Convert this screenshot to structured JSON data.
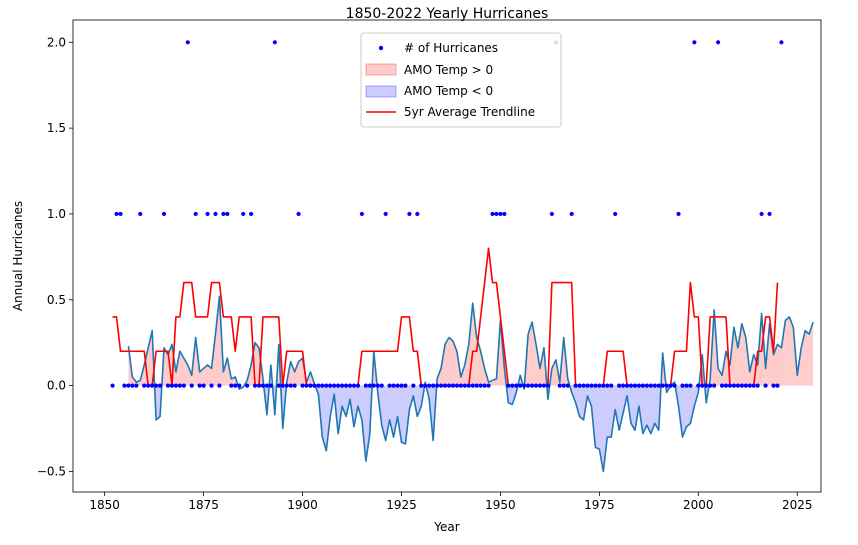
{
  "chart_data": {
    "type": "line",
    "title": "1850-2022 Yearly Hurricanes",
    "xlabel": "Year",
    "ylabel": "Annual Hurricanes",
    "xlim": [
      1842,
      2031
    ],
    "ylim": [
      -0.62,
      2.13
    ],
    "xticks": [
      1850,
      1875,
      1900,
      1925,
      1950,
      1975,
      2000,
      2025
    ],
    "yticks": [
      -0.5,
      0.0,
      0.5,
      1.0,
      1.5,
      2.0
    ],
    "ytick_labels": [
      "−0.5",
      "0.0",
      "0.5",
      "1.0",
      "1.5",
      "2.0"
    ],
    "grid": false,
    "legend_position": "top-center",
    "legend": [
      {
        "label": "# of Hurricanes",
        "kind": "marker",
        "color": "#0000ff"
      },
      {
        "label": "AMO Temp > 0",
        "kind": "patch",
        "color": "#ff0000"
      },
      {
        "label": "AMO Temp < 0",
        "kind": "patch",
        "color": "#0000ff"
      },
      {
        "label": "5yr Average Trendline",
        "kind": "line",
        "color": "#ff0000"
      }
    ],
    "colors": {
      "hurricanes": "#0000ff",
      "amo_line": "#1f77b4",
      "amo_positive_fill": "#ff0000",
      "amo_negative_fill": "#0000ff",
      "trend": "#ff0000"
    },
    "series": [
      {
        "name": "# of Hurricanes",
        "type": "scatter",
        "x_start": 1852,
        "y": [
          0,
          1,
          1,
          0,
          0,
          0,
          0,
          1,
          0,
          0,
          0,
          0,
          0,
          1,
          0,
          0,
          0,
          0,
          0,
          2,
          0,
          1,
          0,
          0,
          1,
          0,
          1,
          0,
          1,
          1,
          0,
          0,
          0,
          1,
          0,
          1,
          0,
          0,
          0,
          0,
          0,
          2,
          0,
          0,
          0,
          0,
          0,
          1,
          0,
          0,
          0,
          0,
          0,
          0,
          0,
          0,
          0,
          0,
          0,
          0,
          0,
          0,
          0,
          1,
          0,
          0,
          0,
          0,
          0,
          1,
          0,
          0,
          0,
          0,
          0,
          1,
          0,
          1,
          0,
          0,
          0,
          0,
          0,
          0,
          0,
          0,
          0,
          0,
          0,
          0,
          0,
          0,
          0,
          0,
          0,
          0,
          1,
          1,
          1,
          1,
          0,
          0,
          0,
          0,
          0,
          0,
          0,
          0,
          0,
          0,
          0,
          1,
          2,
          0,
          0,
          0,
          1,
          0,
          0,
          0,
          0,
          0,
          0,
          0,
          0,
          0,
          0,
          1,
          0,
          0,
          0,
          0,
          0,
          0,
          0,
          0,
          0,
          0,
          0,
          0,
          0,
          0,
          0,
          1,
          0,
          0,
          0,
          2,
          0,
          0,
          0,
          0,
          0,
          2,
          0,
          0,
          0,
          0,
          0,
          0,
          0,
          0,
          0,
          0,
          1,
          0,
          1,
          0,
          0,
          2
        ]
      },
      {
        "name": "AMO Temp",
        "type": "line",
        "x_start": 1856,
        "y": [
          0.23,
          0.05,
          0.02,
          0.03,
          0.12,
          0.22,
          0.32,
          -0.2,
          -0.18,
          0.22,
          0.18,
          0.24,
          0.08,
          0.2,
          0.16,
          0.12,
          0.06,
          0.28,
          0.08,
          0.1,
          0.12,
          0.1,
          0.3,
          0.52,
          0.08,
          0.16,
          0.04,
          0.05,
          -0.02,
          -0.01,
          0.03,
          0.12,
          0.25,
          0.22,
          0.04,
          -0.17,
          0.12,
          -0.17,
          0.24,
          -0.25,
          0.02,
          0.14,
          0.08,
          0.14,
          0.16,
          0.02,
          0.08,
          0.01,
          -0.05,
          -0.3,
          -0.38,
          -0.18,
          -0.05,
          -0.28,
          -0.12,
          -0.18,
          -0.08,
          -0.24,
          -0.12,
          -0.2,
          -0.44,
          -0.28,
          0.2,
          -0.04,
          -0.23,
          -0.32,
          -0.2,
          -0.3,
          -0.18,
          -0.33,
          -0.34,
          -0.14,
          -0.06,
          -0.18,
          -0.12,
          0.02,
          -0.08,
          -0.32,
          0.04,
          0.1,
          0.24,
          0.28,
          0.26,
          0.2,
          0.05,
          0.12,
          0.24,
          0.48,
          0.28,
          0.2,
          0.1,
          0.02,
          0.03,
          0.04,
          0.38,
          0.1,
          -0.1,
          -0.11,
          -0.04,
          0.06,
          -0.02,
          0.3,
          0.37,
          0.24,
          0.1,
          0.22,
          -0.08,
          0.1,
          0.15,
          0.02,
          0.28,
          0.04,
          -0.04,
          -0.1,
          -0.18,
          -0.2,
          -0.06,
          -0.12,
          -0.36,
          -0.37,
          -0.5,
          -0.3,
          -0.3,
          -0.14,
          -0.26,
          -0.16,
          -0.06,
          -0.22,
          -0.26,
          -0.12,
          -0.28,
          -0.23,
          -0.28,
          -0.22,
          -0.26,
          0.19,
          -0.04,
          0.0,
          0.02,
          -0.12,
          -0.3,
          -0.24,
          -0.22,
          -0.12,
          -0.04,
          0.18,
          -0.1,
          0.04,
          0.44,
          0.1,
          0.06,
          0.2,
          0.12,
          0.34,
          0.22,
          0.36,
          0.28,
          0.08,
          0.18,
          0.12,
          0.42,
          0.1,
          0.36,
          0.18,
          0.24,
          0.22,
          0.38,
          0.4,
          0.34,
          0.06,
          0.22,
          0.32,
          0.3,
          0.37
        ]
      },
      {
        "name": "5yr Average Trendline",
        "type": "line",
        "x_start": 1852,
        "y": [
          0.4,
          0.4,
          0.2,
          0.2,
          0.2,
          0.2,
          0.2,
          0.2,
          0.2,
          0.0,
          0.0,
          0.2,
          0.2,
          0.2,
          0.2,
          0.0,
          0.4,
          0.4,
          0.6,
          0.6,
          0.6,
          0.4,
          0.4,
          0.4,
          0.4,
          0.6,
          0.6,
          0.6,
          0.4,
          0.4,
          0.4,
          0.2,
          0.4,
          0.4,
          0.4,
          0.4,
          0.0,
          0.0,
          0.4,
          0.4,
          0.4,
          0.4,
          0.4,
          0.0,
          0.2,
          0.2,
          0.2,
          0.2,
          0.2,
          0.0,
          0.0,
          0.0,
          0.0,
          0.0,
          0.0,
          0.0,
          0.0,
          0.0,
          0.0,
          0.0,
          0.0,
          0.0,
          0.0,
          0.2,
          0.2,
          0.2,
          0.2,
          0.2,
          0.2,
          0.2,
          0.2,
          0.2,
          0.2,
          0.4,
          0.4,
          0.4,
          0.2,
          0.2,
          0.0,
          0.0,
          0.0,
          0.0,
          0.0,
          0.0,
          0.0,
          0.0,
          0.0,
          0.0,
          0.0,
          0.0,
          0.0,
          0.2,
          0.2,
          0.4,
          0.6,
          0.8,
          0.6,
          0.6,
          0.4,
          0.2,
          0.0,
          0.0,
          0.0,
          0.0,
          0.0,
          0.0,
          0.0,
          0.0,
          0.0,
          0.0,
          0.0,
          0.6,
          0.6,
          0.6,
          0.6,
          0.6,
          0.6,
          0.0,
          0.0,
          0.0,
          0.0,
          0.0,
          0.0,
          0.0,
          0.0,
          0.2,
          0.2,
          0.2,
          0.2,
          0.2,
          0.0,
          0.0,
          0.0,
          0.0,
          0.0,
          0.0,
          0.0,
          0.0,
          0.0,
          0.0,
          0.0,
          0.0,
          0.2,
          0.2,
          0.2,
          0.2,
          0.6,
          0.4,
          0.4,
          0.0,
          0.0,
          0.4,
          0.4,
          0.4,
          0.4,
          0.4,
          0.0,
          0.0,
          0.0,
          0.0,
          0.0,
          0.0,
          0.0,
          0.2,
          0.2,
          0.4,
          0.4,
          0.2,
          0.6
        ]
      }
    ]
  }
}
